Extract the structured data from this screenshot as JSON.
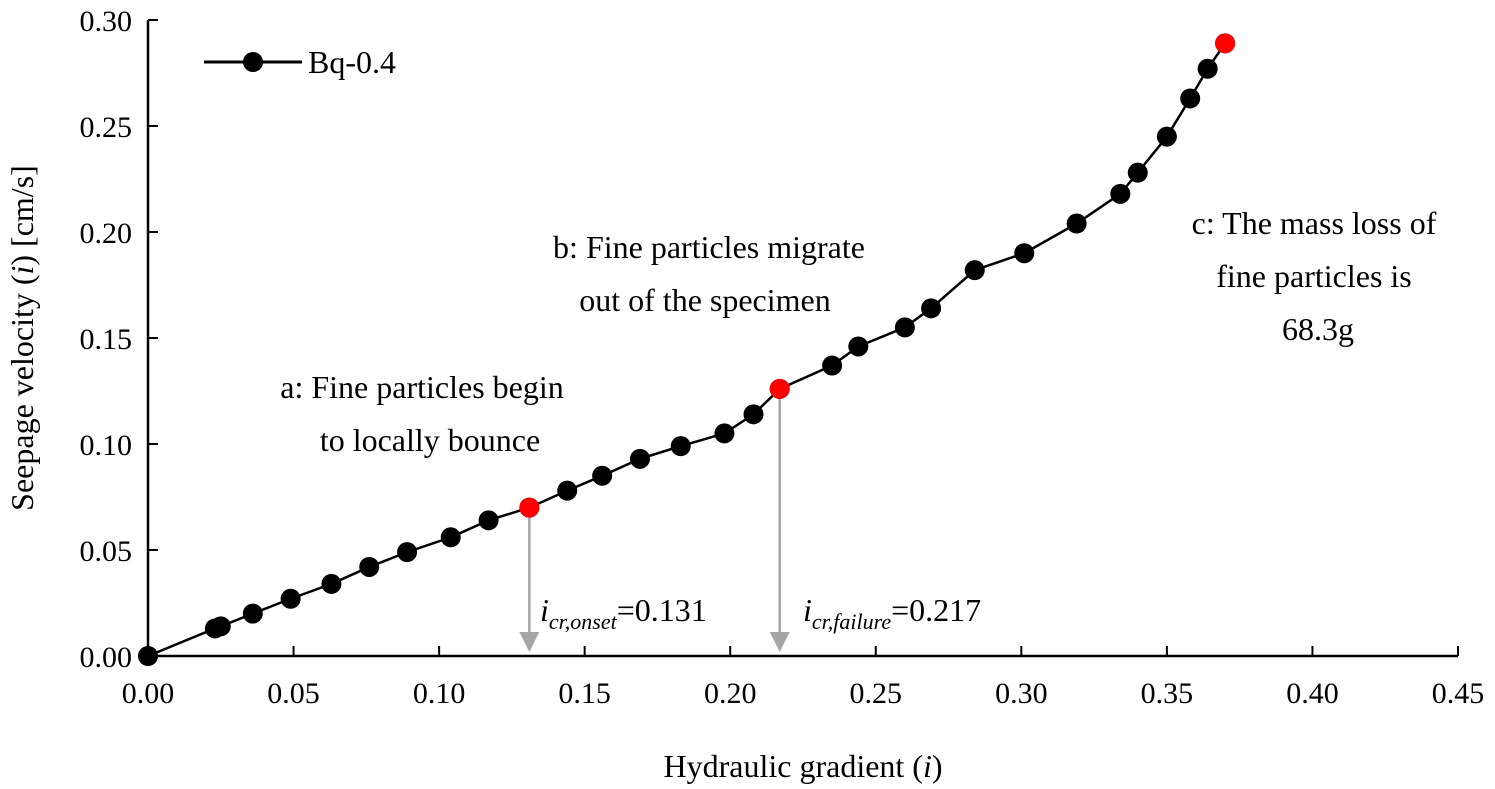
{
  "chart_data": {
    "type": "scatter",
    "xlabel": {
      "prefix": "Hydraulic gradient (",
      "var": "i",
      "suffix": ")"
    },
    "ylabel": {
      "prefix": "Seepage velocity (",
      "var": "i",
      "suffix": ") [cm/s]"
    },
    "xlim": [
      0,
      0.45
    ],
    "ylim": [
      0,
      0.3
    ],
    "xticks": [
      "0.00",
      "0.05",
      "0.10",
      "0.15",
      "0.20",
      "0.25",
      "0.30",
      "0.35",
      "0.40",
      "0.45"
    ],
    "yticks": [
      "0.00",
      "0.05",
      "0.10",
      "0.15",
      "0.20",
      "0.25",
      "0.30"
    ],
    "grid": false,
    "legend_position": "top-left",
    "series": [
      {
        "name": "Bq-0.4",
        "color": "#000000",
        "marker": "circle",
        "x": [
          0.0,
          0.023,
          0.025,
          0.036,
          0.049,
          0.063,
          0.076,
          0.089,
          0.104,
          0.117,
          0.131,
          0.144,
          0.156,
          0.169,
          0.183,
          0.198,
          0.208,
          0.217,
          0.235,
          0.244,
          0.26,
          0.269,
          0.284,
          0.301,
          0.319,
          0.334,
          0.34,
          0.35,
          0.358,
          0.364,
          0.37
        ],
        "y": [
          0.0,
          0.013,
          0.014,
          0.02,
          0.027,
          0.034,
          0.042,
          0.049,
          0.056,
          0.064,
          0.07,
          0.078,
          0.085,
          0.093,
          0.099,
          0.105,
          0.114,
          0.126,
          0.137,
          0.146,
          0.155,
          0.164,
          0.182,
          0.19,
          0.204,
          0.218,
          0.228,
          0.245,
          0.263,
          0.277,
          0.289
        ]
      }
    ],
    "highlight_points": {
      "color": "#ff0000",
      "x": [
        0.131,
        0.217,
        0.37
      ],
      "y": [
        0.07,
        0.126,
        0.289
      ]
    },
    "critical_markers": [
      {
        "x": 0.131,
        "y": 0.07,
        "var": "i",
        "sub": "cr,onset",
        "value": "=0.131"
      },
      {
        "x": 0.217,
        "y": 0.126,
        "var": "i",
        "sub": "cr,failure",
        "value": "=0.217"
      }
    ],
    "annotations": [
      {
        "lines": [
          "a: Fine particles begin",
          "to locally bounce"
        ]
      },
      {
        "lines": [
          "b: Fine particles migrate",
          "out of the specimen"
        ]
      },
      {
        "lines": [
          "c: The mass loss of",
          "fine particles is",
          "68.3g"
        ]
      }
    ]
  }
}
